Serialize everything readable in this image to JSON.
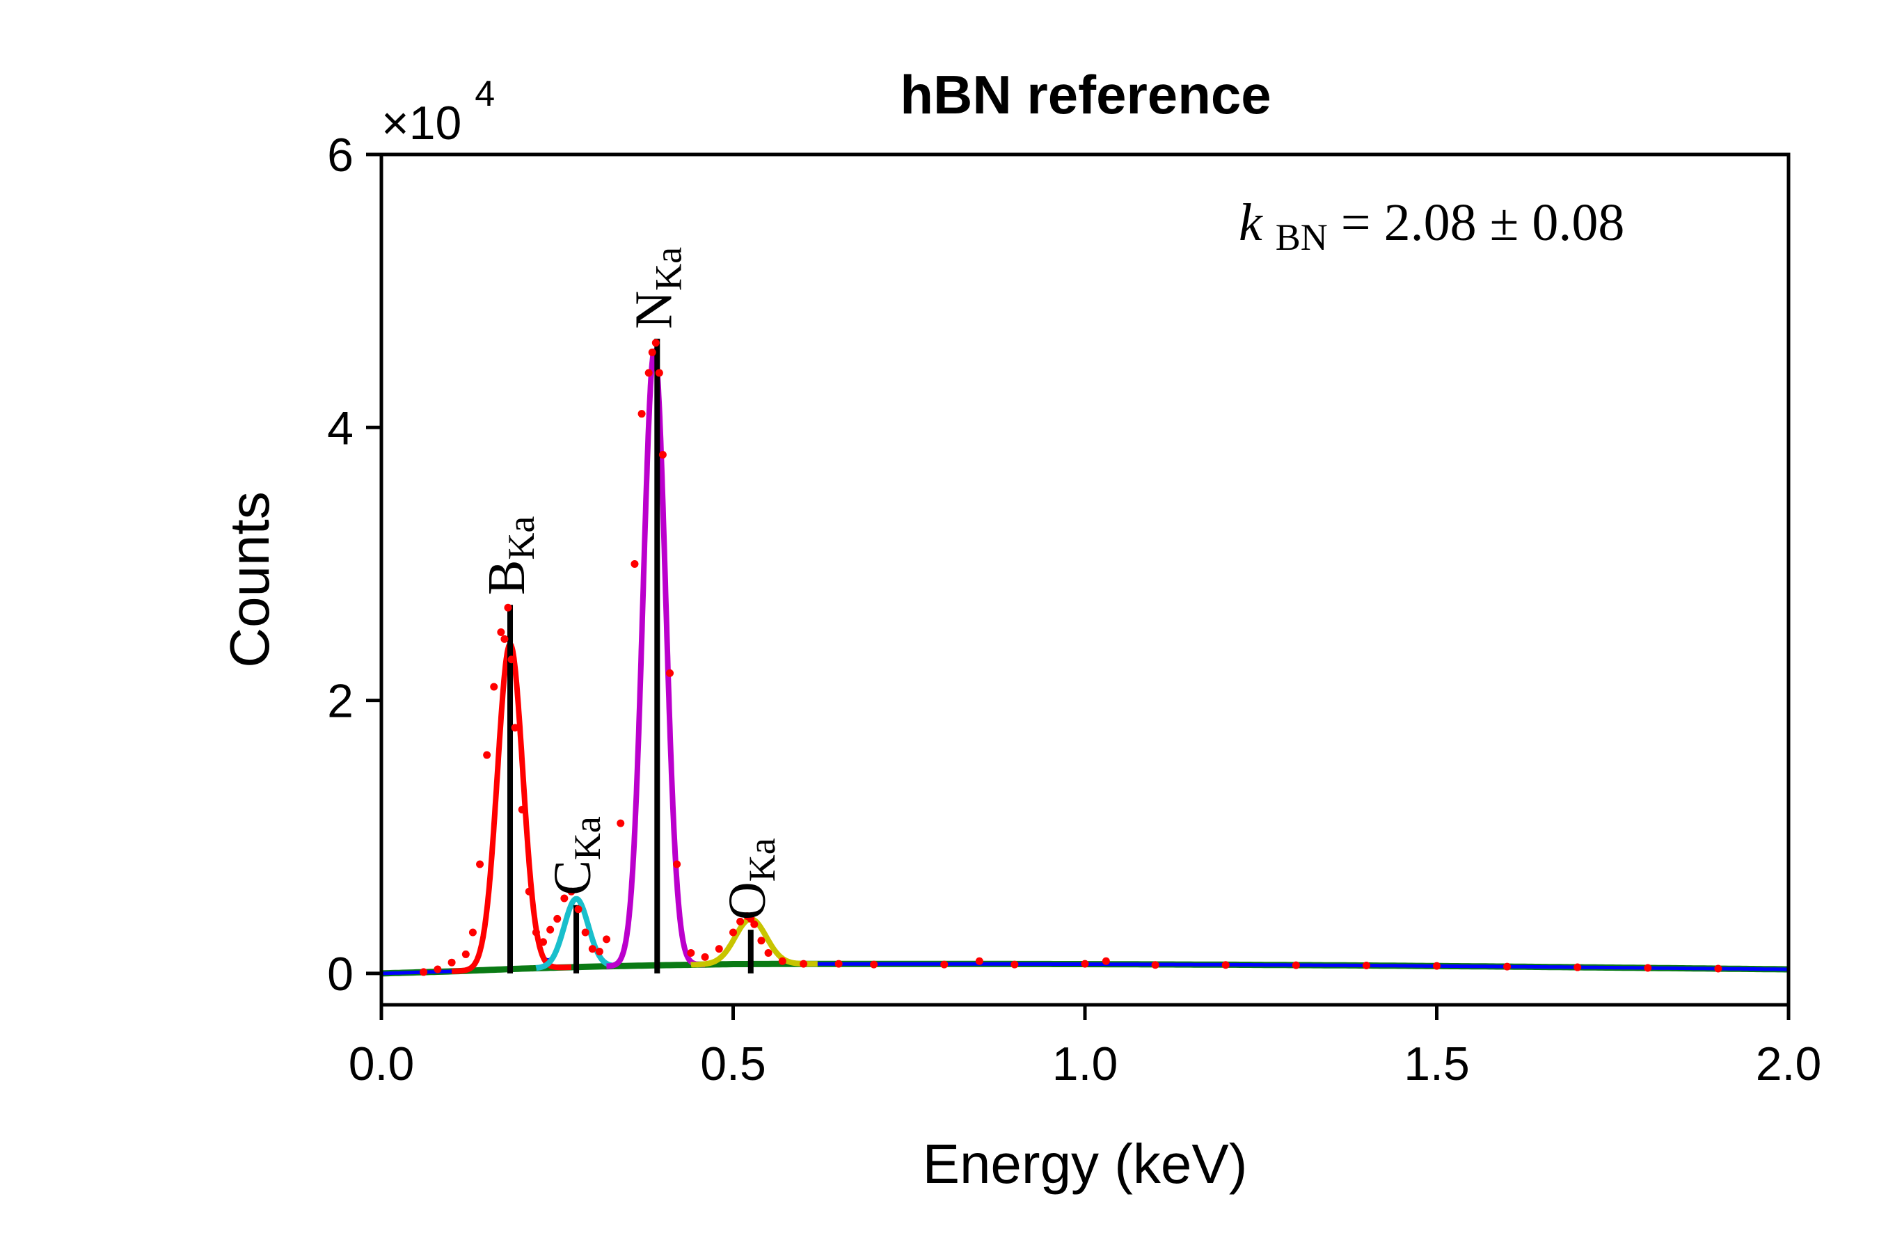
{
  "chart_data": {
    "type": "line",
    "title": "hBN reference",
    "xlabel": "Energy (keV)",
    "ylabel": "Counts",
    "y_multiplier": "×10",
    "y_multiplier_exponent": "4",
    "xlim": [
      0.0,
      2.0
    ],
    "ylim": [
      -2300,
      60000
    ],
    "x_ticks": [
      0.0,
      0.5,
      1.0,
      1.5,
      2.0
    ],
    "x_tick_labels": [
      "0.0",
      "0.5",
      "1.0",
      "1.5",
      "2.0"
    ],
    "y_ticks": [
      0,
      20000,
      40000,
      60000
    ],
    "y_tick_labels": [
      "0",
      "2",
      "4",
      "6"
    ],
    "grid": false,
    "legend": "none",
    "annotation": {
      "symbol": "k",
      "subscript": "BN",
      "text": " = 2.08 ± 0.08"
    },
    "peak_markers": [
      {
        "label": "B",
        "subscript": "Ka",
        "energy": 0.183,
        "counts": 27000
      },
      {
        "label": "C",
        "subscript": "Ka",
        "energy": 0.277,
        "counts": 5000
      },
      {
        "label": "N",
        "subscript": "Ka",
        "energy": 0.392,
        "counts": 46500
      },
      {
        "label": "O",
        "subscript": "Ka",
        "energy": 0.525,
        "counts": 3200
      }
    ],
    "series": [
      {
        "role": "background",
        "color": "#0a7a14",
        "x": [
          0.0,
          0.1,
          0.2,
          0.3,
          0.4,
          0.5,
          0.6,
          0.8,
          1.0,
          1.2,
          1.4,
          1.6,
          1.8,
          2.0
        ],
        "y": [
          0,
          150,
          350,
          500,
          600,
          680,
          700,
          700,
          680,
          640,
          580,
          500,
          400,
          300
        ]
      },
      {
        "role": "B Ka component",
        "color": "#ff0000",
        "center": 0.183,
        "amplitude": 23800,
        "sigma": 0.018,
        "xrange": [
          0.1,
          0.27
        ]
      },
      {
        "role": "C Ka component",
        "color": "#19bfcc",
        "center": 0.277,
        "amplitude": 5000,
        "sigma": 0.017,
        "xrange": [
          0.22,
          0.33
        ]
      },
      {
        "role": "N Ka component",
        "color": "#bb00cc",
        "center": 0.388,
        "amplitude": 45000,
        "sigma": 0.016,
        "xrange": [
          0.32,
          0.46
        ]
      },
      {
        "role": "O Ka component",
        "color": "#c8c400",
        "center": 0.525,
        "amplitude": 3300,
        "sigma": 0.022,
        "xrange": [
          0.44,
          0.62
        ]
      },
      {
        "role": "total fit",
        "color": "#0000ff"
      },
      {
        "role": "measured",
        "color": "#ff0000",
        "marker": "dot",
        "x": [
          0.06,
          0.08,
          0.1,
          0.12,
          0.13,
          0.14,
          0.15,
          0.16,
          0.17,
          0.175,
          0.18,
          0.185,
          0.19,
          0.2,
          0.21,
          0.22,
          0.23,
          0.24,
          0.25,
          0.26,
          0.27,
          0.28,
          0.29,
          0.3,
          0.31,
          0.32,
          0.34,
          0.36,
          0.37,
          0.38,
          0.385,
          0.39,
          0.395,
          0.4,
          0.41,
          0.42,
          0.44,
          0.46,
          0.48,
          0.5,
          0.51,
          0.52,
          0.525,
          0.53,
          0.54,
          0.55,
          0.57,
          0.6,
          0.65,
          0.7,
          0.8,
          0.85,
          0.9,
          1.0,
          1.03,
          1.1,
          1.2,
          1.3,
          1.4,
          1.5,
          1.6,
          1.7,
          1.8,
          1.9
        ],
        "y": [
          100,
          300,
          800,
          1400,
          3000,
          8000,
          16000,
          21000,
          25000,
          24500,
          26800,
          23000,
          18000,
          12000,
          6000,
          3000,
          2300,
          3200,
          4000,
          5500,
          6000,
          4700,
          3000,
          1800,
          1600,
          2500,
          11000,
          30000,
          41000,
          44000,
          45500,
          46200,
          44000,
          38000,
          22000,
          8000,
          1500,
          1200,
          1800,
          3000,
          3800,
          4200,
          4000,
          3600,
          2400,
          1500,
          900,
          700,
          700,
          650,
          650,
          900,
          650,
          700,
          900,
          620,
          620,
          600,
          580,
          550,
          500,
          450,
          400,
          350
        ]
      }
    ]
  }
}
